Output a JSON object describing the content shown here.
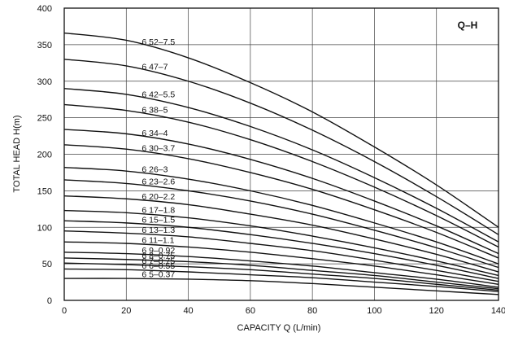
{
  "chart_data": {
    "type": "line",
    "xlabel": "CAPACITY  Q (L/min)",
    "ylabel": "TOTAL HEAD  H(m)",
    "corner_label": "Q–H",
    "xlim": [
      0,
      140
    ],
    "ylim": [
      0,
      400
    ],
    "xticks": [
      "0",
      "20",
      "40",
      "60",
      "80",
      "100",
      "120",
      "140"
    ],
    "yticks": [
      "0",
      "50",
      "100",
      "150",
      "200",
      "250",
      "300",
      "350",
      "400"
    ],
    "grid": true,
    "x": [
      0,
      20,
      40,
      60,
      80,
      100,
      120,
      140
    ],
    "series": [
      {
        "name": "6 52–7.5",
        "values": [
          366,
          356,
          332,
          298,
          258,
          210,
          158,
          100
        ]
      },
      {
        "name": "6 47–7",
        "values": [
          330,
          321,
          300,
          270,
          233,
          190,
          142,
          90
        ]
      },
      {
        "name": "6 42–5.5",
        "values": [
          290,
          282,
          264,
          238,
          206,
          168,
          126,
          80
        ]
      },
      {
        "name": "6 38–5",
        "values": [
          268,
          260,
          244,
          220,
          190,
          155,
          116,
          73
        ]
      },
      {
        "name": "6 34–4",
        "values": [
          234,
          228,
          214,
          193,
          167,
          136,
          102,
          64
        ]
      },
      {
        "name": "6 30–3.7",
        "values": [
          213,
          207,
          194,
          175,
          152,
          124,
          93,
          58
        ]
      },
      {
        "name": "6 26–3",
        "values": [
          182,
          177,
          166,
          150,
          130,
          106,
          80,
          50
        ]
      },
      {
        "name": "6 23–2.6",
        "values": [
          165,
          160,
          150,
          136,
          118,
          96,
          72,
          45
        ]
      },
      {
        "name": "6 20–2.2",
        "values": [
          143,
          139,
          131,
          118,
          103,
          84,
          63,
          39
        ]
      },
      {
        "name": "6 17–1.8",
        "values": [
          123,
          120,
          113,
          102,
          88,
          72,
          54,
          34
        ]
      },
      {
        "name": "6 15–1.5",
        "values": [
          109,
          106,
          100,
          90,
          78,
          64,
          48,
          30
        ]
      },
      {
        "name": "6 13–1.3",
        "values": [
          95,
          92,
          87,
          78,
          68,
          55,
          41,
          26
        ]
      },
      {
        "name": "6 11–1.1",
        "values": [
          80,
          78,
          73,
          66,
          57,
          47,
          35,
          22
        ]
      },
      {
        "name": "6 9–0.92",
        "values": [
          66,
          64,
          60,
          54,
          47,
          38,
          29,
          18
        ]
      },
      {
        "name": "6 8–0.75",
        "values": [
          58,
          56,
          53,
          48,
          41,
          34,
          25,
          16
        ]
      },
      {
        "name": "6 7–0.75",
        "values": [
          51,
          49,
          46,
          42,
          36,
          30,
          22,
          14
        ]
      },
      {
        "name": "6 6–0.55",
        "values": [
          43,
          42,
          39,
          35,
          31,
          25,
          19,
          12
        ]
      },
      {
        "name": "6 5–0.37",
        "values": [
          30,
          30,
          29,
          27,
          23,
          18,
          13,
          8
        ]
      }
    ]
  }
}
